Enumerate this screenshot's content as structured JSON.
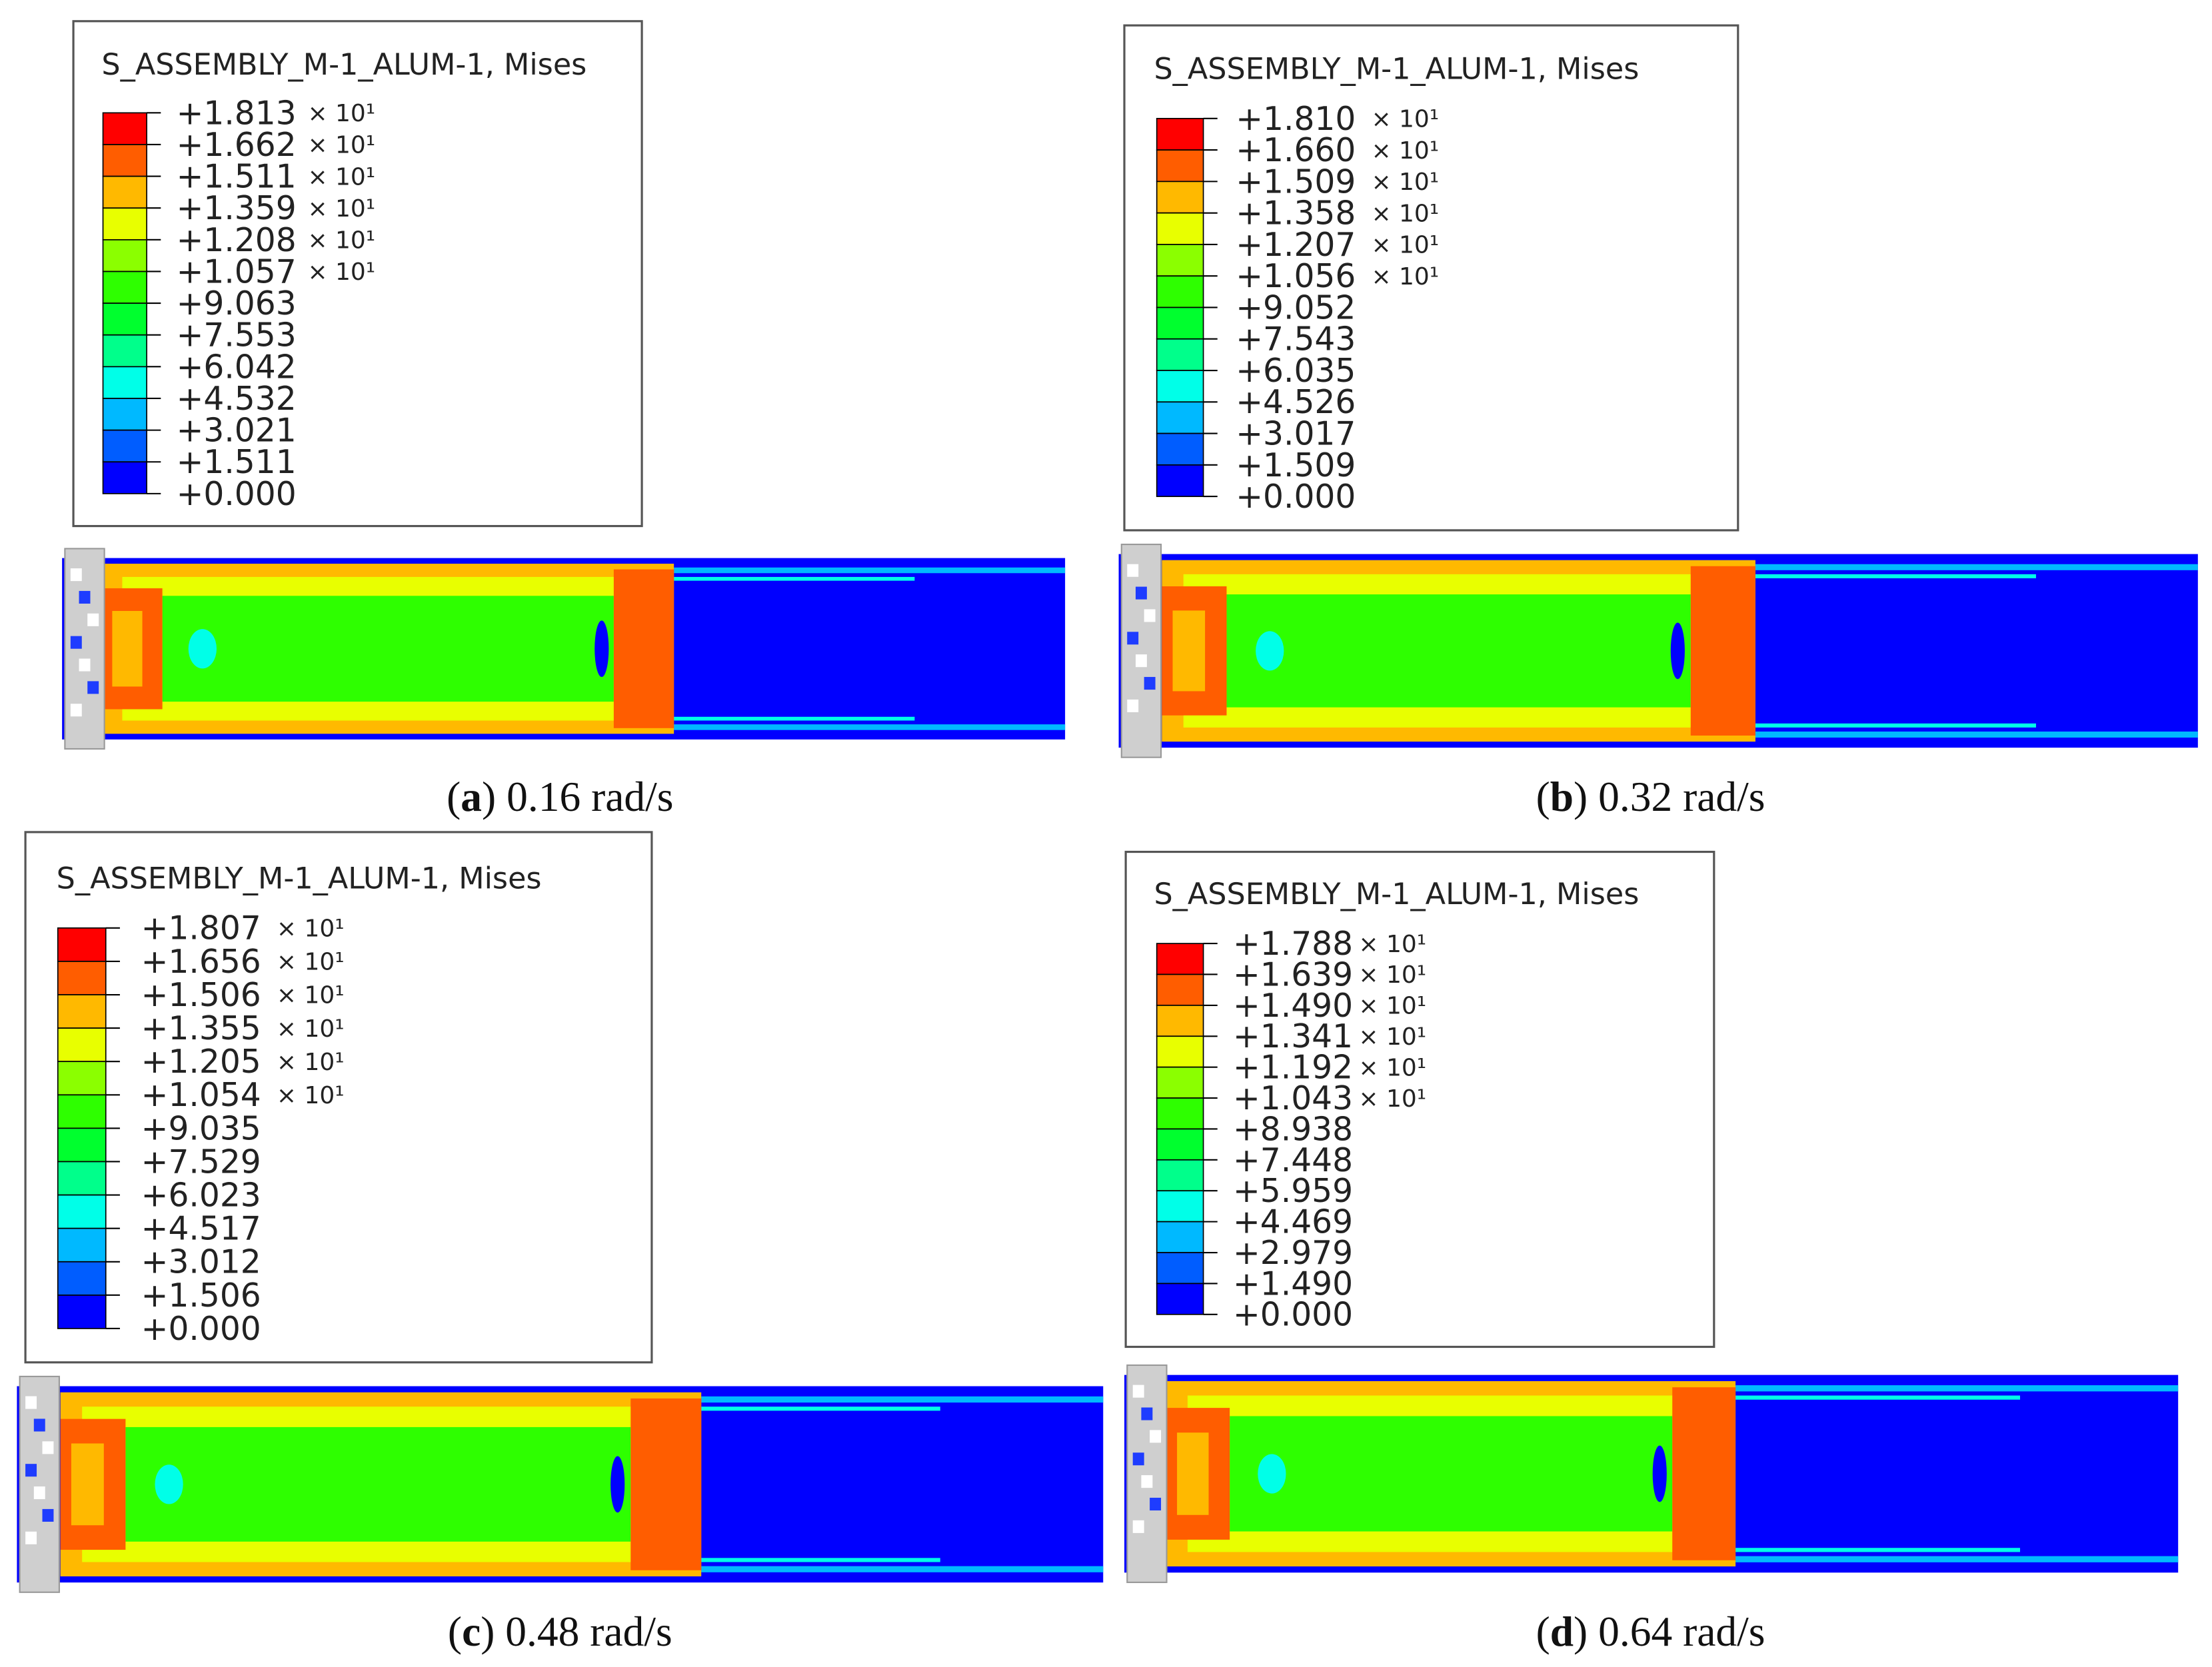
{
  "panels": [
    {
      "legend": {
        "title": "S_ASSEMBLY_M-1_ALUM-1, Mises",
        "labels": [
          [
            "+1.813",
            "× 10¹"
          ],
          [
            "+1.662",
            "× 10¹"
          ],
          [
            "+1.511",
            "× 10¹"
          ],
          [
            "+1.359",
            "× 10¹"
          ],
          [
            "+1.208",
            "× 10¹"
          ],
          [
            "+1.057",
            "× 10¹"
          ],
          [
            "+9.063"
          ],
          [
            "+7.553"
          ],
          [
            "+6.042"
          ],
          [
            "+4.532"
          ],
          [
            "+3.021"
          ],
          [
            "+1.511"
          ],
          [
            "+0.000"
          ]
        ]
      },
      "caption": {
        "open": "(",
        "letter": "a",
        "text": ") 0.16 rad/s"
      }
    },
    {
      "legend": {
        "title": "S_ASSEMBLY_M-1_ALUM-1, Mises",
        "labels": [
          [
            "+1.810",
            "× 10¹"
          ],
          [
            "+1.660",
            "× 10¹"
          ],
          [
            "+1.509",
            "× 10¹"
          ],
          [
            "+1.358",
            "× 10¹"
          ],
          [
            "+1.207",
            "× 10¹"
          ],
          [
            "+1.056",
            "× 10¹"
          ],
          [
            "+9.052"
          ],
          [
            "+7.543"
          ],
          [
            "+6.035"
          ],
          [
            "+4.526"
          ],
          [
            "+3.017"
          ],
          [
            "+1.509"
          ],
          [
            "+0.000"
          ]
        ]
      },
      "caption": {
        "open": "(",
        "letter": "b",
        "text": ") 0.32 rad/s"
      }
    },
    {
      "legend": {
        "title": "S_ASSEMBLY_M-1_ALUM-1, Mises",
        "labels": [
          [
            "+1.807",
            "× 10¹"
          ],
          [
            "+1.656",
            "× 10¹"
          ],
          [
            "+1.506",
            "× 10¹"
          ],
          [
            "+1.355",
            "× 10¹"
          ],
          [
            "+1.205",
            "× 10¹"
          ],
          [
            "+1.054",
            "× 10¹"
          ],
          [
            "+9.035"
          ],
          [
            "+7.529"
          ],
          [
            "+6.023"
          ],
          [
            "+4.517"
          ],
          [
            "+3.012"
          ],
          [
            "+1.506"
          ],
          [
            "+0.000"
          ]
        ]
      },
      "caption": {
        "open": "(",
        "letter": "c",
        "text": ") 0.48 rad/s"
      }
    },
    {
      "legend": {
        "title": "S_ASSEMBLY_M-1_ALUM-1, Mises",
        "labels": [
          [
            "+1.788",
            "× 10¹"
          ],
          [
            "+1.639",
            "× 10¹"
          ],
          [
            "+1.490",
            "× 10¹"
          ],
          [
            "+1.341",
            "× 10¹"
          ],
          [
            "+1.192",
            "× 10¹"
          ],
          [
            "+1.043",
            "× 10¹"
          ],
          [
            "+8.938"
          ],
          [
            "+7.448"
          ],
          [
            "+5.959"
          ],
          [
            "+4.469"
          ],
          [
            "+2.979"
          ],
          [
            "+1.490"
          ],
          [
            "+0.000"
          ]
        ]
      },
      "caption": {
        "open": "(",
        "letter": "d",
        "text": ") 0.64 rad/s"
      }
    }
  ]
}
